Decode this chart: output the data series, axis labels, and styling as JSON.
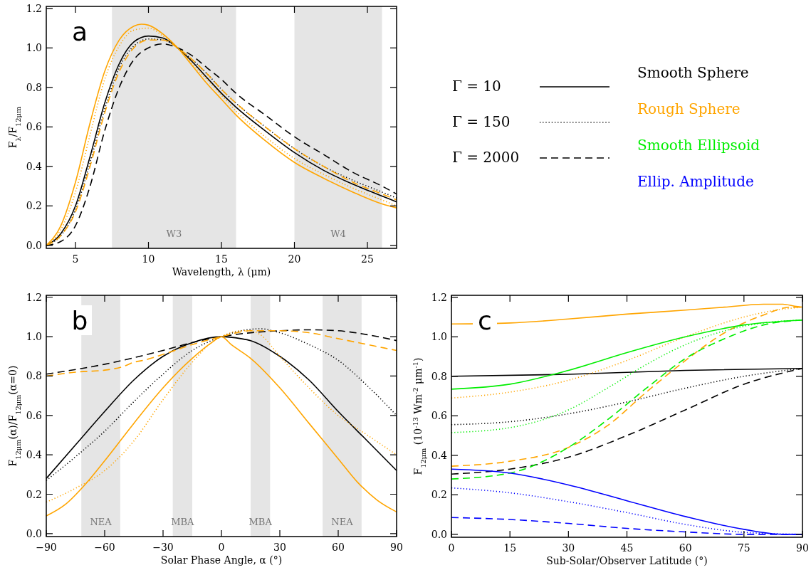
{
  "chart_data": [
    {
      "type": "line",
      "title": "a",
      "xlabel": "Wavelength, λ (μm)",
      "ylabel": "F$_{λ}$/F$_{12μm}$",
      "xlim": [
        3,
        27
      ],
      "ylim": [
        -0.015,
        1.21
      ],
      "xticks": [
        5,
        10,
        15,
        20,
        25
      ],
      "yticks": [
        {
          "value": 0,
          "label": "0.0"
        },
        {
          "value": 0.2,
          "label": "0.2"
        },
        {
          "value": 0.4,
          "label": "0.4"
        },
        {
          "value": 0.6,
          "label": "0.6"
        },
        {
          "value": 0.8,
          "label": "0.8"
        },
        {
          "value": 1,
          "label": "1.0"
        },
        {
          "value": 1.2,
          "label": "1.2"
        }
      ],
      "bands": [
        {
          "axis": "x",
          "from": 7.5,
          "to": 16,
          "label": "W3",
          "color": "#e5e5e5"
        },
        {
          "axis": "x",
          "from": 20,
          "to": 26,
          "label": "W4",
          "color": "#e5e5e5"
        }
      ],
      "series": [
        {
          "color": "#000000",
          "line_style": "solid",
          "x": [
            3,
            4,
            5,
            6,
            7,
            8,
            9,
            10,
            11,
            12,
            13,
            14,
            15,
            16,
            18,
            20,
            22,
            24,
            26,
            27
          ],
          "values": [
            0,
            0.06,
            0.2,
            0.45,
            0.72,
            0.92,
            1.03,
            1.06,
            1.05,
            1,
            0.93,
            0.85,
            0.77,
            0.7,
            0.58,
            0.47,
            0.38,
            0.31,
            0.25,
            0.22
          ]
        },
        {
          "color": "#000000",
          "line_style": "dotted",
          "x": [
            3,
            4,
            5,
            6,
            7,
            8,
            9,
            10,
            11,
            12,
            13,
            14,
            15,
            16,
            18,
            20,
            22,
            24,
            26,
            27
          ],
          "values": [
            0,
            0.05,
            0.18,
            0.42,
            0.69,
            0.9,
            1.01,
            1.045,
            1.04,
            1,
            0.94,
            0.87,
            0.79,
            0.72,
            0.6,
            0.49,
            0.4,
            0.33,
            0.27,
            0.24
          ]
        },
        {
          "color": "#000000",
          "line_style": "dashed",
          "x": [
            3,
            4,
            5,
            6,
            7,
            8,
            9,
            10,
            11,
            12,
            13,
            14,
            15,
            16,
            18,
            20,
            22,
            24,
            26,
            27
          ],
          "values": [
            0,
            0.02,
            0.1,
            0.3,
            0.58,
            0.8,
            0.94,
            1,
            1.02,
            1,
            0.96,
            0.9,
            0.84,
            0.77,
            0.66,
            0.55,
            0.46,
            0.37,
            0.3,
            0.26
          ]
        },
        {
          "color": "#ffa500",
          "line_style": "solid",
          "x": [
            3,
            4,
            5,
            6,
            7,
            8,
            9,
            9.5,
            10,
            11,
            12,
            13,
            14,
            15,
            16,
            18,
            20,
            22,
            24,
            26,
            27
          ],
          "values": [
            0,
            0.1,
            0.32,
            0.62,
            0.88,
            1.04,
            1.11,
            1.12,
            1.115,
            1.07,
            1,
            0.91,
            0.82,
            0.74,
            0.66,
            0.53,
            0.42,
            0.34,
            0.27,
            0.21,
            0.19
          ]
        },
        {
          "color": "#ffa500",
          "line_style": "dotted",
          "x": [
            3,
            4,
            5,
            6,
            7,
            8,
            9,
            10,
            11,
            12,
            13,
            14,
            15,
            16,
            18,
            20,
            22,
            24,
            26,
            27
          ],
          "values": [
            0,
            0.08,
            0.27,
            0.56,
            0.84,
            1.01,
            1.09,
            1.1,
            1.06,
            1,
            0.92,
            0.84,
            0.76,
            0.68,
            0.55,
            0.44,
            0.36,
            0.29,
            0.23,
            0.2
          ]
        },
        {
          "color": "#ffa500",
          "line_style": "dashed",
          "x": [
            3,
            4,
            5,
            6,
            7,
            8,
            9,
            10,
            11,
            12,
            13,
            14,
            15,
            16,
            18,
            20,
            22,
            24,
            26,
            27
          ],
          "values": [
            0,
            0.05,
            0.17,
            0.4,
            0.67,
            0.88,
            1,
            1.04,
            1.04,
            1,
            0.94,
            0.87,
            0.79,
            0.72,
            0.6,
            0.49,
            0.4,
            0.32,
            0.26,
            0.23
          ]
        }
      ]
    },
    {
      "type": "other",
      "annotations": [
        "Γ = 10",
        "Γ = 150",
        "Γ = 2000",
        "Smooth Sphere",
        "Rough Sphere",
        "Smooth Ellipsoid",
        "Ellip. Amplitude"
      ],
      "colors": [
        "#000000",
        "#000000",
        "#000000",
        "#000000",
        "#ffa500",
        "#00ee00",
        "#0000ff"
      ]
    },
    {
      "type": "line",
      "title": "b",
      "xlabel": "Solar Phase Angle, α (°)",
      "ylabel": "F$_{12μm}$(α)/F$_{12μm}$(α=0)",
      "xlim": [
        -90,
        90
      ],
      "ylim": [
        -0.015,
        1.21
      ],
      "xticks": [
        {
          "value": -90,
          "label": "−90"
        },
        {
          "value": -60,
          "label": "−60"
        },
        {
          "value": -30,
          "label": "−30"
        },
        0,
        30,
        60,
        90
      ],
      "yticks": [
        {
          "value": 0,
          "label": "0.0"
        },
        {
          "value": 0.2,
          "label": "0.2"
        },
        {
          "value": 0.4,
          "label": "0.4"
        },
        {
          "value": 0.6,
          "label": "0.6"
        },
        {
          "value": 0.8,
          "label": "0.8"
        },
        {
          "value": 1,
          "label": "1.0"
        },
        {
          "value": 1.2,
          "label": "1.2"
        }
      ],
      "bands": [
        {
          "axis": "x",
          "from": -72,
          "to": -52,
          "label": "NEA",
          "color": "#e5e5e5"
        },
        {
          "axis": "x",
          "from": -25,
          "to": -15,
          "label": "MBA",
          "color": "#e5e5e5"
        },
        {
          "axis": "x",
          "from": 15,
          "to": 25,
          "label": "MBA",
          "color": "#e5e5e5"
        },
        {
          "axis": "x",
          "from": 52,
          "to": 72,
          "label": "NEA",
          "color": "#e5e5e5"
        }
      ],
      "series": [
        {
          "color": "#000000",
          "line_style": "solid",
          "x": [
            -90,
            -75,
            -60,
            -45,
            -30,
            -15,
            0,
            10,
            15,
            30,
            45,
            60,
            75,
            90
          ],
          "values": [
            0.28,
            0.45,
            0.62,
            0.78,
            0.9,
            0.97,
            1,
            0.99,
            0.98,
            0.9,
            0.78,
            0.62,
            0.47,
            0.32
          ]
        },
        {
          "color": "#000000",
          "line_style": "dotted",
          "x": [
            -90,
            -75,
            -60,
            -45,
            -30,
            -15,
            0,
            10,
            20,
            30,
            45,
            60,
            75,
            90
          ],
          "values": [
            0.27,
            0.39,
            0.52,
            0.67,
            0.81,
            0.93,
            1,
            1.03,
            1.04,
            1.02,
            0.96,
            0.88,
            0.75,
            0.6
          ]
        },
        {
          "color": "#000000",
          "line_style": "dashed",
          "x": [
            -90,
            -60,
            -30,
            -15,
            0,
            15,
            30,
            45,
            60,
            75,
            90
          ],
          "values": [
            0.81,
            0.86,
            0.93,
            0.97,
            1,
            1.02,
            1.03,
            1.035,
            1.03,
            1.01,
            0.98
          ]
        },
        {
          "color": "#ffa500",
          "line_style": "solid",
          "x": [
            -90,
            -80,
            -70,
            -60,
            -45,
            -30,
            -15,
            -5,
            0,
            5,
            15,
            30,
            45,
            60,
            70,
            80,
            90
          ],
          "values": [
            0.09,
            0.15,
            0.25,
            0.37,
            0.56,
            0.74,
            0.89,
            0.97,
            1,
            0.96,
            0.89,
            0.74,
            0.56,
            0.38,
            0.26,
            0.17,
            0.11
          ]
        },
        {
          "color": "#ffa500",
          "line_style": "dotted",
          "x": [
            -90,
            -75,
            -60,
            -45,
            -30,
            -15,
            -5,
            0,
            10,
            15,
            20,
            30,
            45,
            60,
            75,
            90
          ],
          "values": [
            0.16,
            0.23,
            0.32,
            0.47,
            0.68,
            0.87,
            0.97,
            1,
            1.03,
            1.03,
            1.01,
            0.9,
            0.74,
            0.6,
            0.5,
            0.4
          ]
        },
        {
          "color": "#ffa500",
          "line_style": "dashed",
          "x": [
            -90,
            -75,
            -60,
            -50,
            -45,
            -40,
            -30,
            -15,
            0,
            15,
            30,
            45,
            60,
            75,
            90
          ],
          "values": [
            0.8,
            0.82,
            0.83,
            0.85,
            0.87,
            0.88,
            0.91,
            0.96,
            1,
            1.03,
            1.03,
            1.02,
            0.99,
            0.96,
            0.93
          ]
        }
      ]
    },
    {
      "type": "line",
      "title": "c",
      "xlabel": "Sub-Solar/Observer Latitude (°)",
      "ylabel": "F$_{12μm}$ (10$^{-13}$ Wm$^{-2}$ μm$^{-1}$)",
      "xlim": [
        0,
        90
      ],
      "ylim": [
        -0.015,
        1.21
      ],
      "xticks": [
        0,
        15,
        30,
        45,
        60,
        75,
        90
      ],
      "yticks": [
        {
          "value": 0,
          "label": "0.0"
        },
        {
          "value": 0.2,
          "label": "0.2"
        },
        {
          "value": 0.4,
          "label": "0.4"
        },
        {
          "value": 0.6,
          "label": "0.6"
        },
        {
          "value": 0.8,
          "label": "0.8"
        },
        {
          "value": 1,
          "label": "1.0"
        },
        {
          "value": 1.2,
          "label": "1.2"
        }
      ],
      "series": [
        {
          "color": "#000000",
          "line_style": "solid",
          "x": [
            0,
            30,
            60,
            90
          ],
          "values": [
            0.8,
            0.81,
            0.83,
            0.84
          ]
        },
        {
          "color": "#000000",
          "line_style": "dotted",
          "x": [
            0,
            15,
            30,
            45,
            60,
            75,
            90
          ],
          "values": [
            0.555,
            0.57,
            0.61,
            0.67,
            0.74,
            0.8,
            0.84
          ]
        },
        {
          "color": "#000000",
          "line_style": "dashed",
          "x": [
            0,
            15,
            30,
            45,
            60,
            75,
            90
          ],
          "values": [
            0.305,
            0.33,
            0.39,
            0.5,
            0.63,
            0.76,
            0.84
          ]
        },
        {
          "color": "#ffa500",
          "line_style": "solid",
          "x": [
            0,
            15,
            30,
            45,
            60,
            70,
            80,
            85,
            88,
            90
          ],
          "values": [
            1.065,
            1.07,
            1.09,
            1.115,
            1.135,
            1.15,
            1.165,
            1.165,
            1.155,
            1.15
          ]
        },
        {
          "color": "#ffa500",
          "line_style": "dotted",
          "x": [
            0,
            15,
            30,
            45,
            60,
            75,
            85,
            90
          ],
          "values": [
            0.69,
            0.72,
            0.78,
            0.88,
            1,
            1.1,
            1.14,
            1.15
          ]
        },
        {
          "color": "#ffa500",
          "line_style": "dashed",
          "x": [
            0,
            15,
            30,
            40,
            50,
            60,
            70,
            80,
            87,
            90
          ],
          "values": [
            0.345,
            0.37,
            0.44,
            0.55,
            0.72,
            0.88,
            1.02,
            1.11,
            1.15,
            1.15
          ]
        },
        {
          "color": "#00ee00",
          "line_style": "solid",
          "x": [
            0,
            15,
            30,
            45,
            60,
            75,
            90
          ],
          "values": [
            0.735,
            0.76,
            0.83,
            0.92,
            1,
            1.06,
            1.085
          ]
        },
        {
          "color": "#00ee00",
          "line_style": "dotted",
          "x": [
            0,
            15,
            30,
            40,
            50,
            60,
            70,
            80,
            90
          ],
          "values": [
            0.515,
            0.54,
            0.63,
            0.74,
            0.86,
            0.96,
            1.03,
            1.07,
            1.085
          ]
        },
        {
          "color": "#00ee00",
          "line_style": "dashed",
          "x": [
            0,
            15,
            30,
            40,
            50,
            60,
            70,
            80,
            90
          ],
          "values": [
            0.28,
            0.31,
            0.44,
            0.58,
            0.74,
            0.89,
            0.99,
            1.06,
            1.085
          ]
        },
        {
          "color": "#0000ff",
          "line_style": "solid",
          "x": [
            0,
            15,
            30,
            45,
            60,
            75,
            85,
            90
          ],
          "values": [
            0.33,
            0.31,
            0.25,
            0.17,
            0.09,
            0.025,
            0,
            0
          ]
        },
        {
          "color": "#0000ff",
          "line_style": "dotted",
          "x": [
            0,
            15,
            30,
            45,
            60,
            75,
            90
          ],
          "values": [
            0.235,
            0.21,
            0.165,
            0.11,
            0.05,
            0.01,
            0
          ]
        },
        {
          "color": "#0000ff",
          "line_style": "dashed",
          "x": [
            0,
            15,
            30,
            45,
            60,
            75,
            90
          ],
          "values": [
            0.085,
            0.075,
            0.055,
            0.03,
            0.012,
            0,
            0
          ]
        }
      ]
    }
  ]
}
